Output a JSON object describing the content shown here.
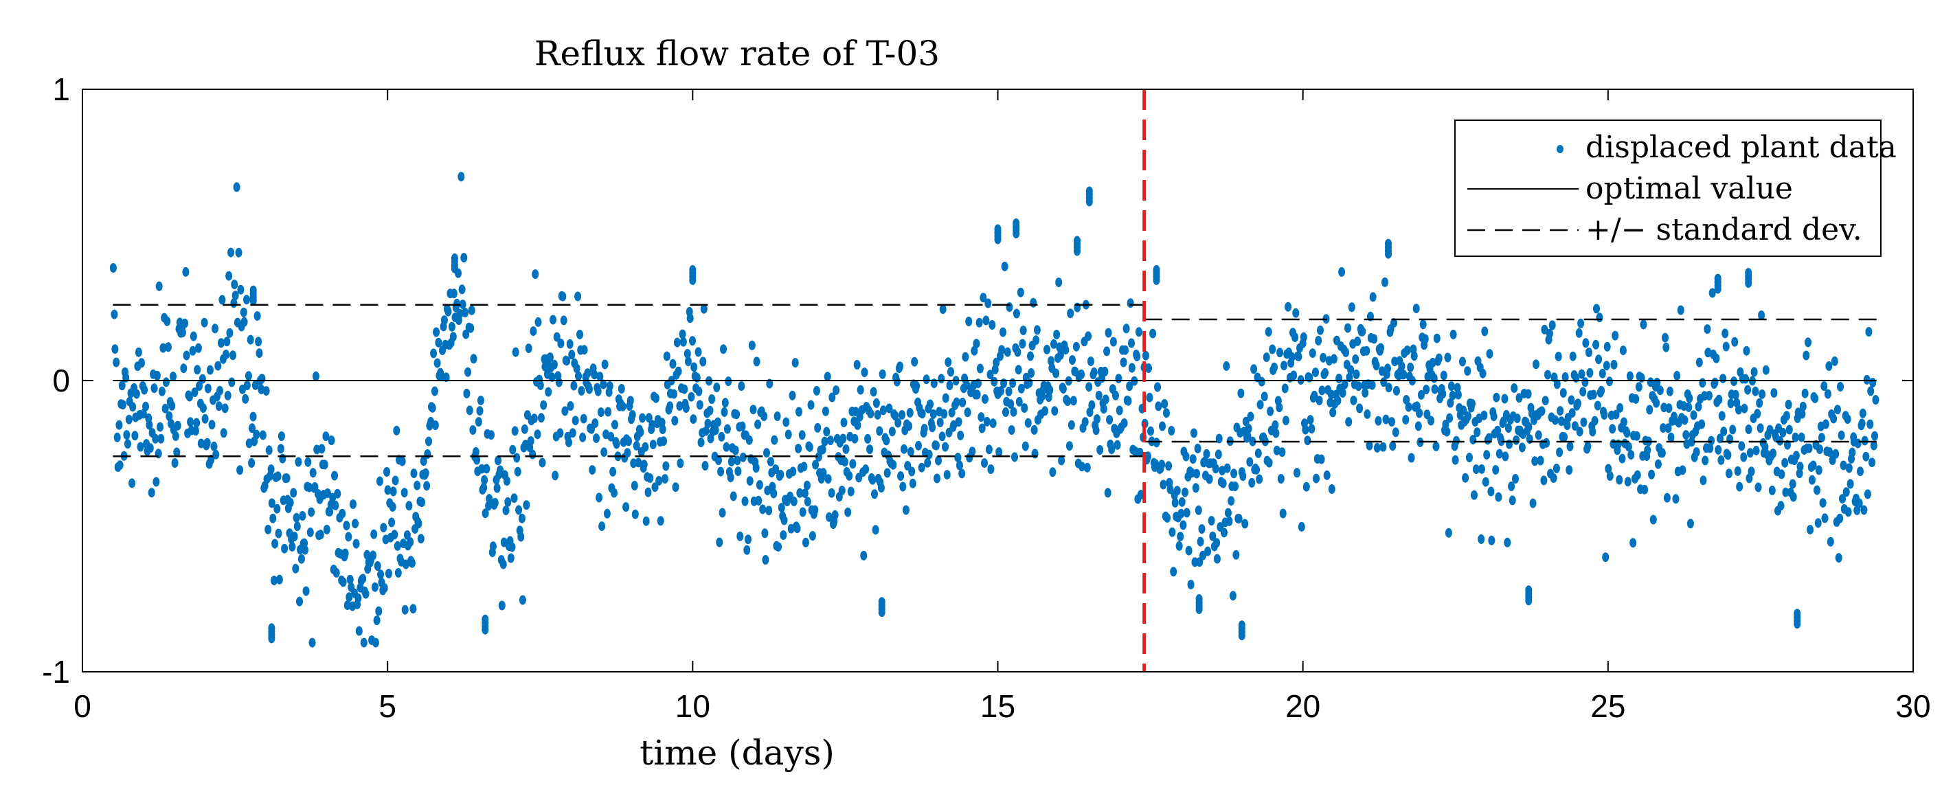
{
  "chart_data": {
    "type": "scatter",
    "title": "Reflux flow rate of T-03",
    "xlabel": "time (days)",
    "ylabel": "",
    "xlim": [
      0,
      30
    ],
    "ylim": [
      -1,
      1
    ],
    "x_ticks": [
      0,
      5,
      10,
      15,
      20,
      25,
      30
    ],
    "y_ticks": [
      -1,
      0,
      1
    ],
    "x_tick_labels": [
      "0",
      "5",
      "10",
      "15",
      "20",
      "25",
      "30"
    ],
    "y_tick_labels": [
      "-1",
      "0",
      "1"
    ],
    "legend": {
      "position": "top-right",
      "entries": [
        {
          "label": "displaced plant data",
          "style": "dots"
        },
        {
          "label": "optimal value",
          "style": "solid-line"
        },
        {
          "label": "+/− standard dev.",
          "style": "dashed-line"
        }
      ]
    },
    "colors": {
      "points": "#0072BD",
      "marker": "#E81F1F",
      "lines": "#000000"
    },
    "optimal_value": 0,
    "std_dev_segments": [
      {
        "x_start": 0.5,
        "x_end": 17.4,
        "upper": 0.26,
        "lower": -0.26
      },
      {
        "x_start": 17.4,
        "x_end": 29.4,
        "upper": 0.21,
        "lower": -0.21
      }
    ],
    "vertical_marker": {
      "x": 17.4,
      "style": "dashed",
      "color": "#E81F1F"
    },
    "series": [
      {
        "name": "displaced plant data",
        "x_range": [
          0.5,
          29.4
        ],
        "note": "approximate trajectory estimated from the scatter",
        "anchors": [
          [
            0.5,
            0.32
          ],
          [
            0.6,
            -0.2
          ],
          [
            0.8,
            -0.05
          ],
          [
            1.0,
            -0.1
          ],
          [
            1.2,
            -0.08
          ],
          [
            1.5,
            -0.12
          ],
          [
            1.7,
            0.1
          ],
          [
            1.9,
            -0.05
          ],
          [
            2.1,
            -0.1
          ],
          [
            2.4,
            0.15
          ],
          [
            2.6,
            0.22
          ],
          [
            2.8,
            -0.1
          ],
          [
            3.0,
            -0.25
          ],
          [
            3.2,
            -0.45
          ],
          [
            3.4,
            -0.3
          ],
          [
            3.5,
            -0.7
          ],
          [
            3.7,
            -0.4
          ],
          [
            4.0,
            -0.4
          ],
          [
            4.2,
            -0.62
          ],
          [
            4.5,
            -0.7
          ],
          [
            4.8,
            -0.68
          ],
          [
            5.0,
            -0.5
          ],
          [
            5.5,
            -0.5
          ],
          [
            5.8,
            0.12
          ],
          [
            6.1,
            0.13
          ],
          [
            6.2,
            0.35
          ],
          [
            6.4,
            -0.05
          ],
          [
            6.6,
            -0.4
          ],
          [
            6.9,
            -0.43
          ],
          [
            7.2,
            -0.4
          ],
          [
            7.4,
            0.0
          ],
          [
            7.7,
            0.05
          ],
          [
            8.0,
            0.0
          ],
          [
            8.3,
            -0.05
          ],
          [
            8.7,
            -0.25
          ],
          [
            9.0,
            -0.18
          ],
          [
            9.3,
            -0.3
          ],
          [
            9.6,
            -0.1
          ],
          [
            10.0,
            0.05
          ],
          [
            10.3,
            -0.15
          ],
          [
            10.7,
            -0.2
          ],
          [
            11.0,
            -0.25
          ],
          [
            11.5,
            -0.3
          ],
          [
            12.0,
            -0.32
          ],
          [
            12.5,
            -0.25
          ],
          [
            13.0,
            -0.2
          ],
          [
            13.5,
            -0.22
          ],
          [
            14.0,
            -0.15
          ],
          [
            14.5,
            -0.1
          ],
          [
            15.0,
            -0.05
          ],
          [
            15.5,
            -0.02
          ],
          [
            16.0,
            0.05
          ],
          [
            16.4,
            0.0
          ],
          [
            16.8,
            -0.08
          ],
          [
            17.2,
            -0.05
          ],
          [
            17.5,
            -0.1
          ],
          [
            17.8,
            -0.3
          ],
          [
            18.1,
            -0.38
          ],
          [
            18.5,
            -0.42
          ],
          [
            18.8,
            -0.35
          ],
          [
            19.2,
            -0.2
          ],
          [
            19.6,
            -0.1
          ],
          [
            20.0,
            -0.05
          ],
          [
            20.5,
            0.0
          ],
          [
            21.0,
            0.02
          ],
          [
            21.5,
            -0.02
          ],
          [
            22.0,
            -0.05
          ],
          [
            22.5,
            -0.1
          ],
          [
            23.0,
            -0.18
          ],
          [
            23.5,
            -0.2
          ],
          [
            24.0,
            -0.15
          ],
          [
            24.5,
            -0.05
          ],
          [
            25.0,
            -0.1
          ],
          [
            25.5,
            -0.15
          ],
          [
            26.0,
            -0.18
          ],
          [
            26.5,
            -0.1
          ],
          [
            27.0,
            -0.05
          ],
          [
            27.5,
            -0.15
          ],
          [
            28.0,
            -0.25
          ],
          [
            28.5,
            -0.2
          ],
          [
            29.0,
            -0.25
          ],
          [
            29.4,
            -0.22
          ]
        ],
        "noise_sd": 0.15,
        "sample_count": 1800,
        "outliers": [
          [
            16.5,
            0.65
          ],
          [
            15.3,
            0.54
          ],
          [
            15.0,
            0.52
          ],
          [
            16.3,
            0.48
          ],
          [
            6.1,
            0.42
          ],
          [
            21.4,
            0.47
          ],
          [
            10.0,
            0.38
          ],
          [
            2.8,
            0.31
          ],
          [
            3.1,
            -0.85
          ],
          [
            6.6,
            -0.82
          ],
          [
            19.0,
            -0.84
          ],
          [
            13.1,
            -0.76
          ],
          [
            28.1,
            -0.8
          ],
          [
            23.7,
            -0.72
          ],
          [
            18.3,
            -0.75
          ],
          [
            17.6,
            0.38
          ],
          [
            26.8,
            0.35
          ],
          [
            27.3,
            0.37
          ]
        ]
      }
    ]
  }
}
